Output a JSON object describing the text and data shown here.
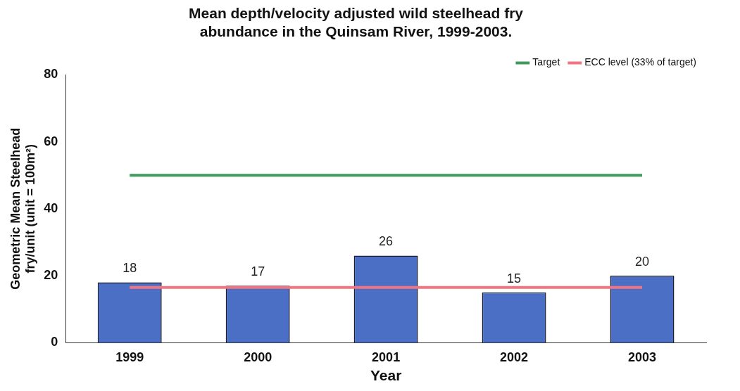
{
  "chart_data": {
    "type": "bar",
    "title": "Mean depth/velocity adjusted wild steelhead fry\nabundance in the Quinsam River, 1999-2003.",
    "xlabel": "Year",
    "ylabel": "Geometric Mean Steelhead\nfry/unit (unit = 100m²)",
    "categories": [
      "1999",
      "2000",
      "2001",
      "2002",
      "2003"
    ],
    "series": [
      {
        "color": "#4a6fc4",
        "values": [
          18,
          17,
          26,
          15,
          20
        ],
        "value_labels": [
          "18",
          "17",
          "26",
          "15",
          "20"
        ]
      },
      {
        "type": "line",
        "name": "Target",
        "color": "#3f9a5c",
        "values": [
          50,
          50,
          50,
          50,
          50
        ]
      },
      {
        "type": "line",
        "name": "ECC level (33% of target)",
        "color": "#f07482",
        "values": [
          16.5,
          16.5,
          16.5,
          16.5,
          16.5
        ]
      }
    ],
    "ylim": [
      0,
      80
    ],
    "yticks": [
      0,
      20,
      40,
      60,
      80
    ],
    "grid": false,
    "legend": "top right",
    "marker": "none",
    "line_style": "solid"
  }
}
